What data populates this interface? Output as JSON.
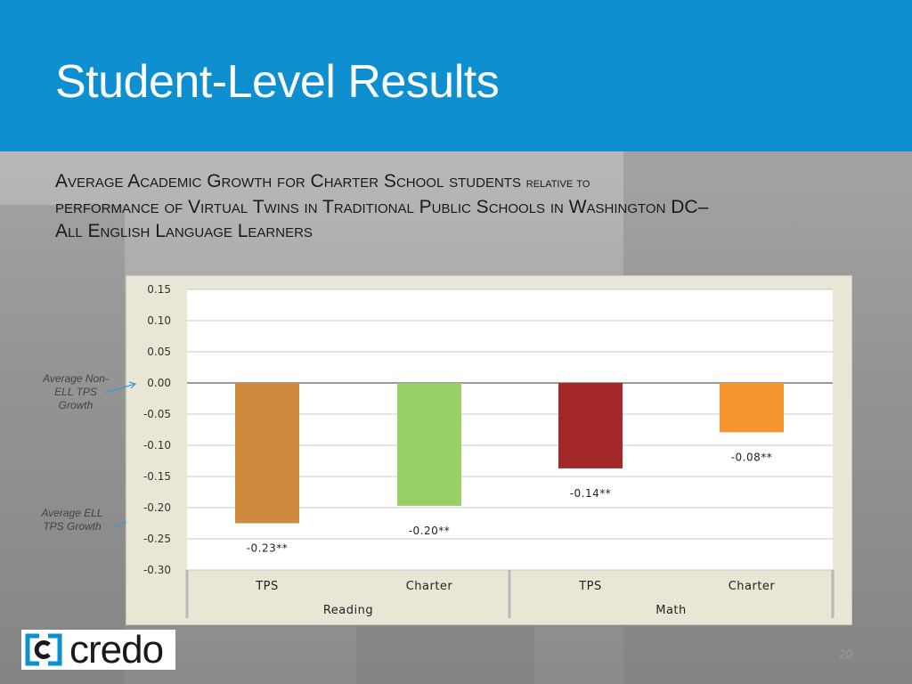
{
  "slide": {
    "title": "Student-Level Results",
    "subtitle_line1_a": "Average Academic Growth for Charter School students ",
    "subtitle_line1_b": "relative to",
    "subtitle_line2": "performance of Virtual Twins in Traditional Public Schools in Washington DC–",
    "subtitle_line3": "All English Language Learners",
    "page_number": "20",
    "logo_text": "credo"
  },
  "annotations": {
    "non_ell": "Average Non-ELL TPS Growth",
    "ell": "Average ELL TPS Growth"
  },
  "colors": {
    "header": "#0e8fd0",
    "bar_reading_tps": "#d08a3e",
    "bar_reading_charter": "#97d068",
    "bar_math_tps": "#a4282a",
    "bar_math_charter": "#f7962f"
  },
  "chart_data": {
    "type": "bar",
    "title": "",
    "xlabel": "",
    "ylabel": "",
    "ylim": [
      -0.3,
      0.15
    ],
    "yticks": [
      "0.15",
      "0.10",
      "0.05",
      "0.00",
      "-0.05",
      "-0.10",
      "-0.15",
      "-0.20",
      "-0.25",
      "-0.30"
    ],
    "ytick_values": [
      0.15,
      0.1,
      0.05,
      0.0,
      -0.05,
      -0.1,
      -0.15,
      -0.2,
      -0.25,
      -0.3
    ],
    "groups": [
      "Reading",
      "Math"
    ],
    "categories": [
      "TPS",
      "Charter",
      "TPS",
      "Charter"
    ],
    "values": [
      -0.225,
      -0.197,
      -0.137,
      -0.079
    ],
    "value_labels": [
      "-0.23**",
      "-0.20**",
      "-0.14**",
      "-0.08**"
    ],
    "grid": true
  }
}
